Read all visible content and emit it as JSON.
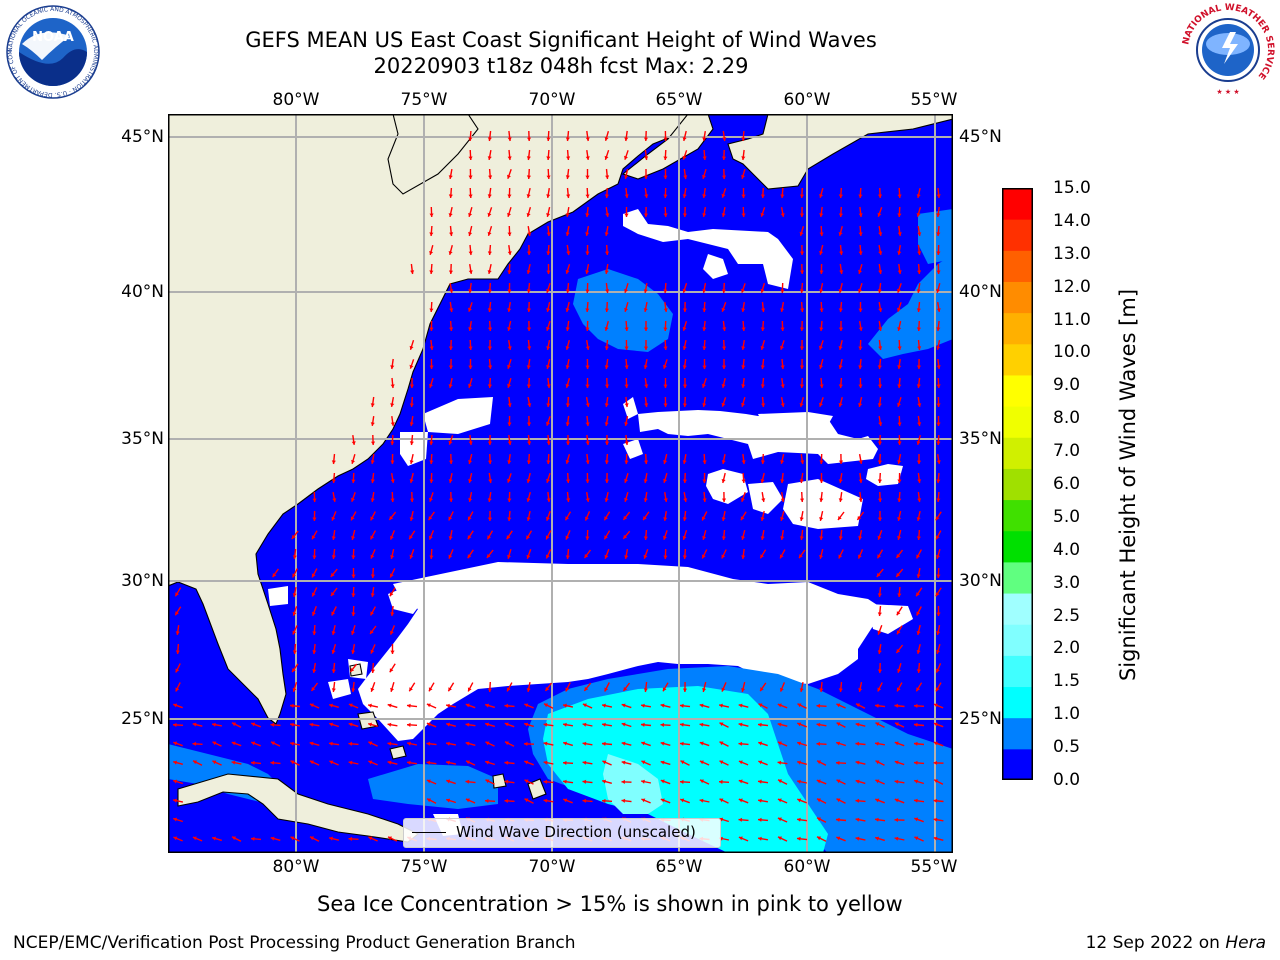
{
  "header": {
    "title_line1": "GEFS MEAN US East Coast Significant Height of Wind Waves",
    "title_line2": "20220903 t18z 048h fcst   Max: 2.29"
  },
  "logos": {
    "noaa_icon": "noaa-logo",
    "noaa_text": "NOAA",
    "noaa_ring_text": "NATIONAL OCEANIC AND ATMOSPHERIC ADMINISTRATION · U.S. DEPARTMENT OF COMMERCE",
    "nws_icon": "nws-logo",
    "nws_ring_text": "NATIONAL WEATHER SERVICE"
  },
  "map": {
    "lon_labels": [
      "80°W",
      "75°W",
      "70°W",
      "65°W",
      "60°W",
      "55°W"
    ],
    "lat_labels": [
      "45°N",
      "40°N",
      "35°N",
      "30°N",
      "25°N"
    ],
    "colors": {
      "ocean_low": "#0000ff",
      "ocean_mid": "#0080ff",
      "ocean_high": "#00ffff",
      "ocean_higher": "#80ffff",
      "land": "#efefdc",
      "no_data": "#ffffff",
      "arrow": "#ff0000",
      "grid": "#b0b0b0"
    },
    "legend_label": "Wind Wave Direction (unscaled)"
  },
  "colorbar": {
    "label": "Significant Height of Wind Waves [m]",
    "ticks": [
      "0.0",
      "0.5",
      "1.0",
      "1.5",
      "2.0",
      "2.5",
      "3.0",
      "4.0",
      "5.0",
      "6.0",
      "7.0",
      "8.0",
      "9.0",
      "10.0",
      "11.0",
      "12.0",
      "13.0",
      "14.0",
      "15.0"
    ],
    "colors": [
      "#0000ff",
      "#0080ff",
      "#00ffff",
      "#40ffff",
      "#80ffff",
      "#a0ffff",
      "#60ff80",
      "#00e000",
      "#40e000",
      "#a0e000",
      "#d0f000",
      "#f0ff00",
      "#ffff00",
      "#ffd000",
      "#ffb000",
      "#ff8c00",
      "#ff6000",
      "#ff3000",
      "#ff0000"
    ]
  },
  "footnote": "Sea Ice Concentration > 15% is shown in pink to yellow",
  "footer": {
    "org": "NCEP/EMC/Verification Post Processing Product Generation Branch",
    "date": "12 Sep 2022 on",
    "host": "Hera"
  }
}
